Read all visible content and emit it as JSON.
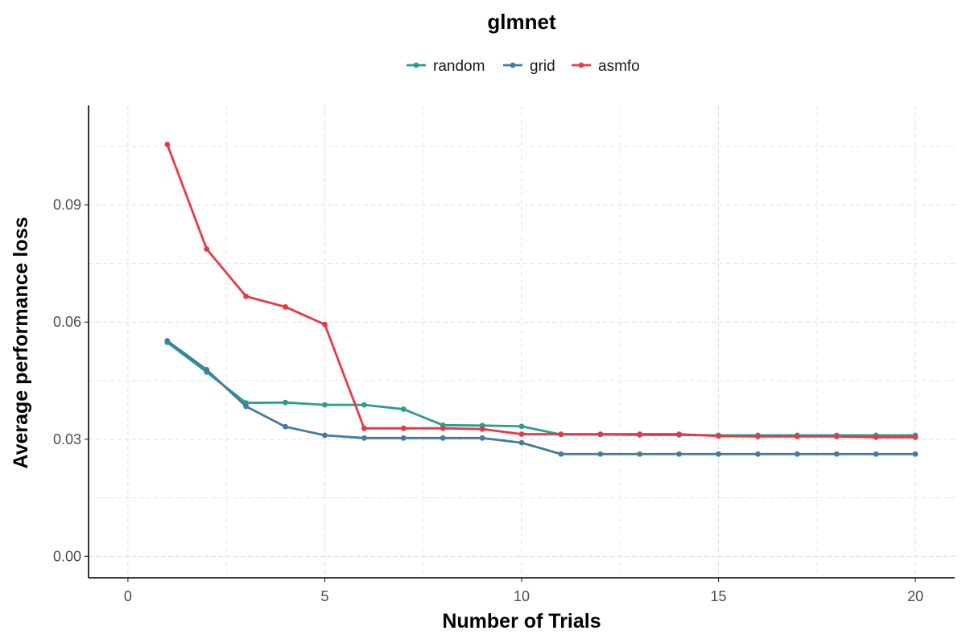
{
  "chart_data": {
    "type": "line",
    "title": "glmnet",
    "xlabel": "Number of Trials",
    "ylabel": "Average performance loss",
    "xlim": [
      -1,
      21
    ],
    "ylim": [
      -0.0055,
      0.1155
    ],
    "xticks": [
      0,
      5,
      10,
      15,
      20
    ],
    "xtick_labels": [
      "0",
      "5",
      "10",
      "15",
      "20"
    ],
    "yticks": [
      0.0,
      0.03,
      0.06,
      0.09
    ],
    "ytick_labels": [
      "0.00",
      "0.03",
      "0.06",
      "0.09"
    ],
    "grid": true,
    "legend_position": "top",
    "x": [
      1,
      2,
      3,
      4,
      5,
      6,
      7,
      8,
      9,
      10,
      11,
      12,
      13,
      14,
      15,
      16,
      17,
      18,
      19,
      20
    ],
    "series": [
      {
        "name": "random",
        "color": "#2a9d8f",
        "values": [
          0.0548,
          0.0472,
          0.0393,
          0.0394,
          0.0388,
          0.0388,
          0.0377,
          0.0336,
          0.0335,
          0.0333,
          0.0312,
          0.0312,
          0.0311,
          0.0311,
          0.031,
          0.031,
          0.031,
          0.031,
          0.031,
          0.031
        ]
      },
      {
        "name": "grid",
        "color": "#457b9d",
        "values": [
          0.0552,
          0.0478,
          0.0384,
          0.0332,
          0.031,
          0.0303,
          0.0303,
          0.0303,
          0.0303,
          0.0291,
          0.0262,
          0.0262,
          0.0262,
          0.0262,
          0.0262,
          0.0262,
          0.0262,
          0.0262,
          0.0262,
          0.0262
        ]
      },
      {
        "name": "asmfo",
        "color": "#e63946",
        "values": [
          0.1055,
          0.0787,
          0.0666,
          0.0639,
          0.0594,
          0.0328,
          0.0328,
          0.0328,
          0.0326,
          0.0313,
          0.0313,
          0.0313,
          0.0313,
          0.0313,
          0.0308,
          0.0307,
          0.0307,
          0.0307,
          0.0305,
          0.0305
        ]
      }
    ]
  }
}
